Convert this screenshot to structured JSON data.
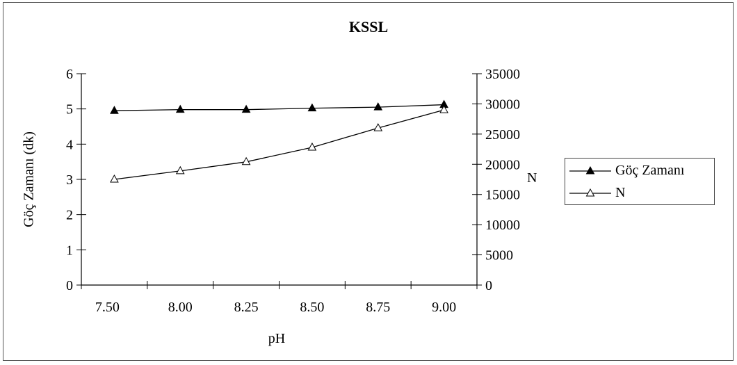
{
  "chart_data": {
    "type": "line",
    "title": "KSSL",
    "xlabel": "pH",
    "ylabel": "Göç Zamanı (dk)",
    "ylabel_right": "N",
    "categories": [
      "7.50",
      "8.00",
      "8.25",
      "8.50",
      "8.75",
      "9.00"
    ],
    "ylim": [
      0,
      6
    ],
    "y2lim": [
      0,
      35000
    ],
    "yticks": [
      "0",
      "1",
      "2",
      "3",
      "4",
      "5",
      "6"
    ],
    "y2ticks": [
      "0",
      "5000",
      "10000",
      "15000",
      "20000",
      "25000",
      "30000",
      "35000"
    ],
    "grid": false,
    "legend": "right",
    "series": [
      {
        "name": "Göç Zamanı",
        "axis": "left",
        "marker": "filled-triangle",
        "color": "#000000",
        "values": [
          4.95,
          4.98,
          4.98,
          5.02,
          5.05,
          5.12
        ]
      },
      {
        "name": "N",
        "axis": "right",
        "marker": "open-triangle",
        "color": "#000000",
        "values": [
          17500,
          18900,
          20400,
          22800,
          26000,
          29000
        ]
      }
    ]
  }
}
